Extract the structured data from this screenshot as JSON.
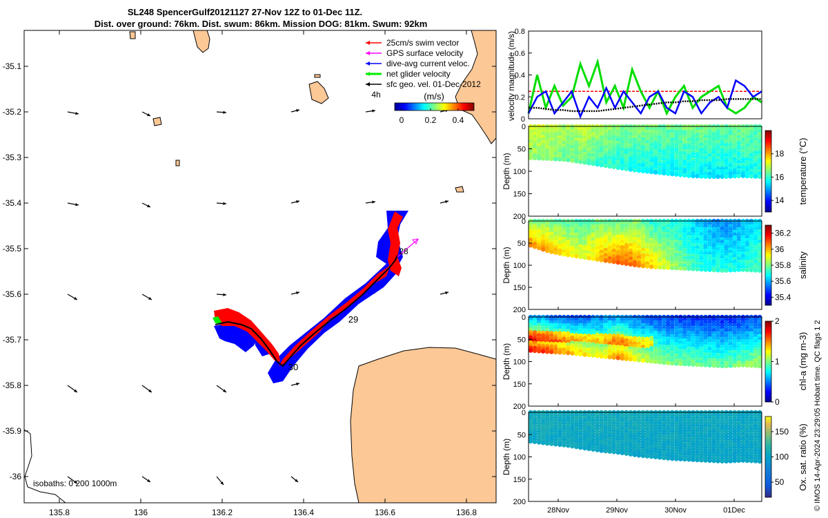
{
  "title": {
    "line1": "SL248 SpencerGulf20121127 27-Nov 12Z to 01-Dec 11Z.",
    "line2": "Dist. over ground: 76km. Dist. swum: 86km. Mission DOG: 81km. Swum: 92km"
  },
  "side_text": "© IMOS 14-Apr-2024 23:29:05 Hobart time. QC flags 1  2",
  "colors": {
    "land": "#fcc896",
    "swim_vector": "#ff0000",
    "gps_velocity": "#ff00ff",
    "dive_avg": "#0000ff",
    "net_glider": "#00ee00",
    "sfc_geo": "#000000"
  },
  "map": {
    "x_ticks": [
      "135.8",
      "136",
      "136.2",
      "136.4",
      "136.6",
      "136.8"
    ],
    "y_ticks": [
      "-35.1",
      "-35.2",
      "-35.3",
      "-35.4",
      "-35.5",
      "-35.6",
      "-35.7",
      "-35.8",
      "-35.9",
      "-36"
    ],
    "legend": [
      {
        "label": "25cm/s swim vector",
        "color": "#ff0000"
      },
      {
        "label": "GPS surface velocity",
        "color": "#ff00ff"
      },
      {
        "label": "dive-avg current veloc.",
        "color": "#0000ff"
      },
      {
        "label": "net glider velocity",
        "color": "#00ee00"
      },
      {
        "label": "sfc geo. vel. 01-Dec-2012",
        "color": "#000000"
      }
    ],
    "colorbar_label": "(m/s)",
    "colorbar_side": "4h",
    "colorbar_ticks": [
      "0",
      "0.2",
      "0.4"
    ],
    "day_labels": [
      "28",
      "29",
      "30"
    ],
    "isobaths": "isobaths: 0   200  1000m"
  },
  "chart_data": [
    {
      "type": "line",
      "ylabel": "velocity magnitude (m/s)",
      "ylim": [
        0,
        0.8
      ],
      "y_ticks": [
        "0",
        "0.2",
        "0.4",
        "0.6",
        "0.8"
      ],
      "x_ticks": [
        "28Nov",
        "29Nov",
        "30Nov",
        "01Dec"
      ],
      "series": [
        {
          "color": "#ff0000",
          "values": [
            0.25,
            0.25
          ]
        },
        {
          "color": "#00dd00",
          "values": [
            0.05,
            0.4,
            0.1,
            0.3,
            0.12,
            0.2,
            0.5,
            0.3,
            0.52,
            0.15,
            0.3,
            0.1,
            0.45,
            0.25,
            0.1,
            0.25,
            0.05,
            0.2,
            0.3,
            0.1,
            0.2,
            0.25,
            0.3,
            0.1,
            0.05,
            0.1,
            0.2,
            0.15
          ]
        },
        {
          "color": "#0000ff",
          "values": [
            0.05,
            0.2,
            0.25,
            0.05,
            0.15,
            0.25,
            0.02,
            0.2,
            0.1,
            0.28,
            0.1,
            0.25,
            0.15,
            0.05,
            0.2,
            0.25,
            0.1,
            0.05,
            0.25,
            0.2,
            0.05,
            0.15,
            0.2,
            0.1,
            0.35,
            0.3,
            0.2,
            0.25
          ]
        },
        {
          "color": "#000000",
          "values": [
            0.1,
            0.1,
            0.09,
            0.08,
            0.08,
            0.07,
            0.07,
            0.07,
            0.07,
            0.08,
            0.09,
            0.1,
            0.11,
            0.12,
            0.13,
            0.14,
            0.15,
            0.15,
            0.16,
            0.16,
            0.17,
            0.17,
            0.17,
            0.18,
            0.18,
            0.18,
            0.18,
            0.18
          ]
        }
      ]
    },
    {
      "type": "heatmap",
      "variable": "temperature (°C)",
      "ylabel": "Depth (m)",
      "y_ticks": [
        "0",
        "50",
        "100",
        "150",
        "200"
      ],
      "cbar_ticks": [
        "14",
        "16",
        "18"
      ],
      "cmin": 13,
      "cmax": 20,
      "bottom_depth": [
        70,
        72,
        74,
        80,
        86,
        92,
        98,
        102,
        106,
        110,
        112,
        112,
        110,
        112
      ],
      "upper_values": [
        17.2,
        17.0,
        16.8,
        17.0,
        16.8,
        16.5,
        16.6,
        16.5,
        16.4,
        16.5,
        16.4,
        16.3,
        16.4,
        16.3
      ],
      "lower_values": [
        16.6,
        16.5,
        16.4,
        16.3,
        16.0,
        15.8,
        15.7,
        15.6,
        15.5,
        15.6,
        15.5,
        15.5,
        15.6,
        15.7
      ]
    },
    {
      "type": "heatmap",
      "variable": "salinity",
      "ylabel": "Depth (m)",
      "y_ticks": [
        "0",
        "50",
        "100",
        "150",
        "200"
      ],
      "cbar_ticks": [
        "35.4",
        "35.6",
        "35.8",
        "36",
        "36.2"
      ],
      "cmin": 35.3,
      "cmax": 36.3,
      "bottom_depth": [
        55,
        68,
        76,
        82,
        88,
        94,
        100,
        104,
        106,
        108,
        110,
        112,
        110,
        112
      ],
      "upper_values": [
        35.8,
        35.8,
        35.75,
        35.75,
        35.8,
        35.75,
        35.8,
        35.7,
        35.7,
        35.65,
        35.6,
        35.55,
        35.6,
        35.65
      ],
      "lower_values": [
        36.05,
        36.0,
        35.95,
        35.9,
        36.0,
        36.1,
        36.05,
        35.95,
        35.85,
        35.75,
        35.7,
        35.72,
        35.7,
        35.75
      ]
    },
    {
      "type": "heatmap",
      "variable": "chl-a (mg m-3)",
      "ylabel": "Depth (m)",
      "y_ticks": [
        "0",
        "50",
        "100",
        "150",
        "200"
      ],
      "cbar_ticks": [
        "0",
        "1",
        "2"
      ],
      "cmin": 0,
      "cmax": 2,
      "bottom_depth": [
        75,
        78,
        80,
        84,
        88,
        92,
        96,
        100,
        104,
        106,
        108,
        110,
        108,
        110
      ],
      "upper_values": [
        0.6,
        0.5,
        0.4,
        0.4,
        0.5,
        0.55,
        0.45,
        0.4,
        0.35,
        0.35,
        0.3,
        0.3,
        0.35,
        0.4
      ],
      "lower_values": [
        1.7,
        1.6,
        1.4,
        1.3,
        1.2,
        1.5,
        1.2,
        1.1,
        1.0,
        1.0,
        0.95,
        0.95,
        1.0,
        1.1
      ]
    },
    {
      "type": "heatmap",
      "variable": "Ox. sat. ratio (%)",
      "ylabel": "Depth (m)",
      "y_ticks": [
        "0",
        "50",
        "100",
        "150",
        "200"
      ],
      "cbar_ticks": [
        "50",
        "100",
        "150"
      ],
      "cmin": 20,
      "cmax": 180,
      "bottom_depth": [
        65,
        70,
        74,
        80,
        86,
        90,
        96,
        100,
        104,
        106,
        108,
        110,
        108,
        110
      ],
      "upper_values": [
        110,
        110,
        108,
        108,
        110,
        108,
        108,
        106,
        106,
        106,
        106,
        106,
        106,
        106
      ],
      "lower_values": [
        106,
        105,
        104,
        104,
        104,
        103,
        103,
        103,
        102,
        102,
        102,
        102,
        102,
        102
      ]
    }
  ]
}
